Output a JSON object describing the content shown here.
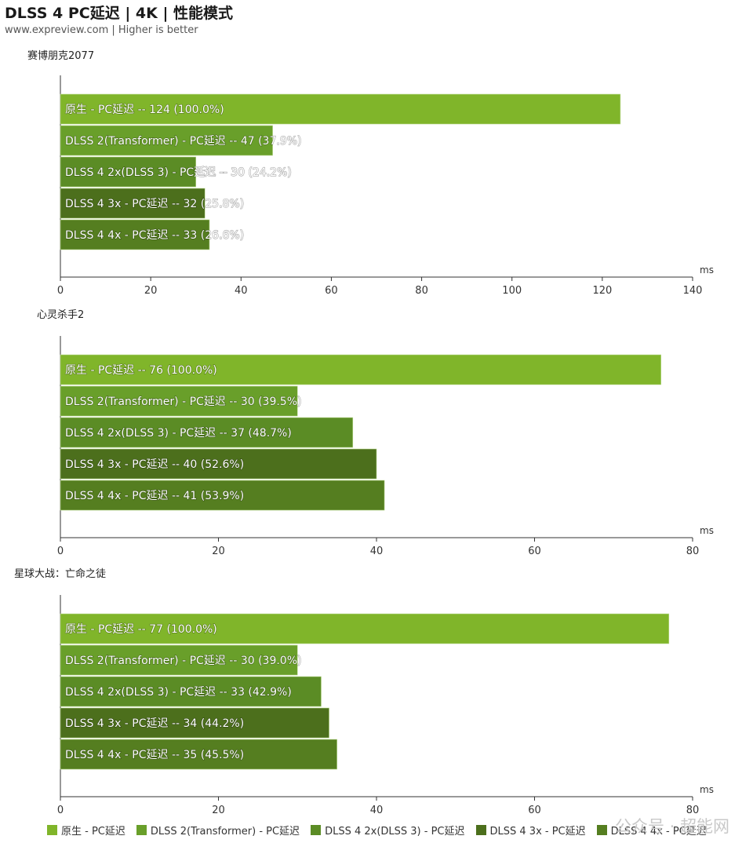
{
  "title": "DLSS 4 PC延迟 | 4K | 性能模式",
  "subtitle": "www.expreview.com | Higher is better",
  "unit": "ms",
  "watermark": "公众号 · 超能网",
  "colors": [
    "#80b52a",
    "#699f2a",
    "#5b8c25",
    "#4c6f1c",
    "#557e20"
  ],
  "legend": [
    "原生 - PC延迟",
    "DLSS 2(Transformer) - PC延迟",
    "DLSS 4 2x(DLSS 3)  - PC延迟",
    "DLSS 4 3x  - PC延迟",
    "DLSS 4 4x  - PC延迟"
  ],
  "chart_data": [
    {
      "type": "bar",
      "orientation": "horizontal",
      "title": "赛博朋克2077",
      "xlabel": "ms",
      "xlim": [
        0,
        140
      ],
      "xticks": [
        0,
        20,
        40,
        60,
        80,
        100,
        120,
        140
      ],
      "bars": [
        {
          "series": "原生 - PC延迟",
          "value": 124,
          "label": "原生 - PC延迟  --  124 (100.0%)"
        },
        {
          "series": "DLSS 2(Transformer) - PC延迟",
          "value": 47,
          "label": "DLSS 2(Transformer) - PC延迟  --  47 (37.9%)"
        },
        {
          "series": "DLSS 4 2x(DLSS 3)  - PC延迟",
          "value": 30,
          "label": "DLSS 4 2x(DLSS 3)  - PC延迟  --  30 (24.2%)"
        },
        {
          "series": "DLSS 4 3x  - PC延迟",
          "value": 32,
          "label": "DLSS 4 3x  - PC延迟  --  32 (25.8%)"
        },
        {
          "series": "DLSS 4 4x  - PC延迟",
          "value": 33,
          "label": "DLSS 4 4x  - PC延迟  --  33 (26.6%)"
        }
      ]
    },
    {
      "type": "bar",
      "orientation": "horizontal",
      "title": "心灵杀手2",
      "xlabel": "ms",
      "xlim": [
        0,
        80
      ],
      "xticks": [
        0,
        20,
        40,
        60,
        80
      ],
      "bars": [
        {
          "series": "原生 - PC延迟",
          "value": 76,
          "label": "原生 - PC延迟  --  76 (100.0%)"
        },
        {
          "series": "DLSS 2(Transformer) - PC延迟",
          "value": 30,
          "label": "DLSS 2(Transformer) - PC延迟  --  30 (39.5%)"
        },
        {
          "series": "DLSS 4 2x(DLSS 3)  - PC延迟",
          "value": 37,
          "label": "DLSS 4 2x(DLSS 3)  - PC延迟  --  37 (48.7%)"
        },
        {
          "series": "DLSS 4 3x  - PC延迟",
          "value": 40,
          "label": "DLSS 4 3x  - PC延迟  --  40 (52.6%)"
        },
        {
          "series": "DLSS 4 4x  - PC延迟",
          "value": 41,
          "label": "DLSS 4 4x  - PC延迟  --  41 (53.9%)"
        }
      ]
    },
    {
      "type": "bar",
      "orientation": "horizontal",
      "title": "星球大战：亡命之徒",
      "xlabel": "ms",
      "xlim": [
        0,
        80
      ],
      "xticks": [
        0,
        20,
        40,
        60,
        80
      ],
      "bars": [
        {
          "series": "原生 - PC延迟",
          "value": 77,
          "label": "原生 - PC延迟  --  77 (100.0%)"
        },
        {
          "series": "DLSS 2(Transformer) - PC延迟",
          "value": 30,
          "label": "DLSS 2(Transformer) - PC延迟  --  30 (39.0%)"
        },
        {
          "series": "DLSS 4 2x(DLSS 3)  - PC延迟",
          "value": 33,
          "label": "DLSS 4 2x(DLSS 3)  - PC延迟  --  33 (42.9%)"
        },
        {
          "series": "DLSS 4 3x  - PC延迟",
          "value": 34,
          "label": "DLSS 4 3x  - PC延迟  --  34 (44.2%)"
        },
        {
          "series": "DLSS 4 4x  - PC延迟",
          "value": 35,
          "label": "DLSS 4 4x  - PC延迟  --  35 (45.5%)"
        }
      ]
    }
  ]
}
